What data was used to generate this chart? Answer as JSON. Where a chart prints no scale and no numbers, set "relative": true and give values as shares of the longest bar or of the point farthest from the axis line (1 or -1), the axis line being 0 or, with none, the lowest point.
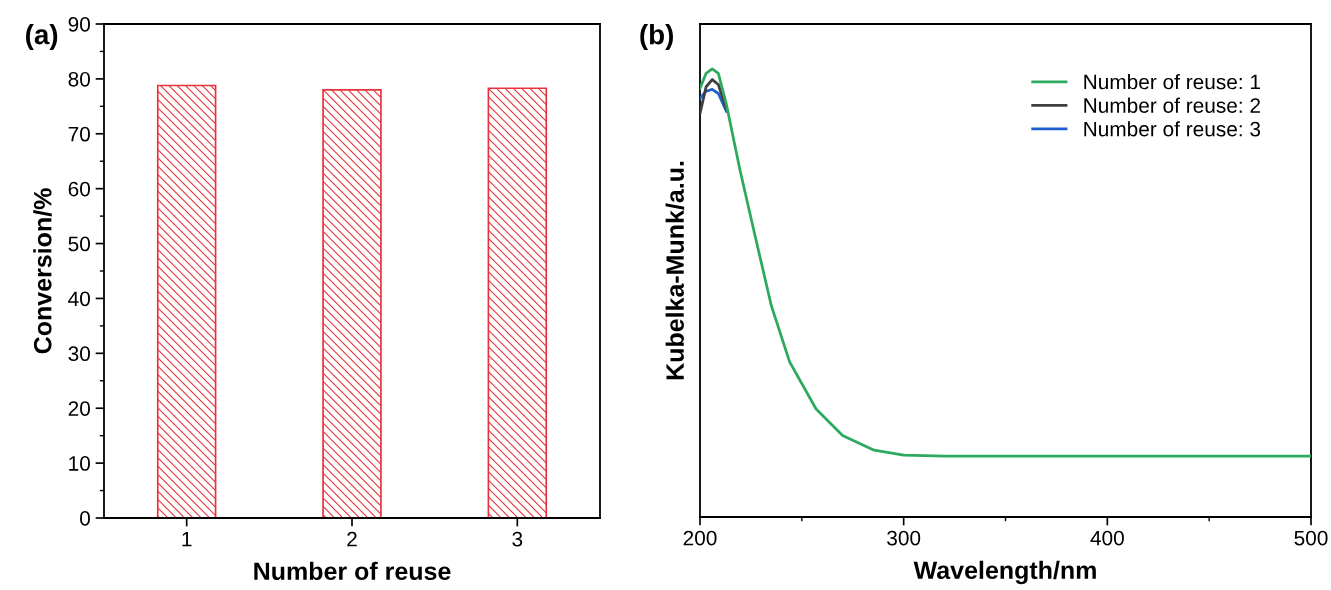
{
  "chart_data": [
    {
      "type": "bar",
      "title": "(a)",
      "xlabel": "Number of reuse",
      "ylabel": "Conversion/%",
      "categories": [
        "1",
        "2",
        "3"
      ],
      "series": [
        {
          "color": "#e8323c",
          "values": [
            78.8,
            78.0,
            78.3
          ]
        }
      ],
      "ylim": [
        0,
        90
      ],
      "yticks": [
        0,
        10,
        20,
        30,
        40,
        50,
        60,
        70,
        80,
        90
      ],
      "grid": false,
      "legend": false
    },
    {
      "type": "line",
      "title": "(b)",
      "xlabel": "Wavelength/nm",
      "ylabel": "Kubelka-Munk/a.u.",
      "relative": true,
      "x": [
        200,
        203,
        206,
        209,
        213,
        219.6,
        227,
        235,
        244,
        257,
        270,
        285.5,
        300,
        320,
        400,
        500
      ],
      "series": [
        {
          "name": "Number of reuse: 1",
          "color": "#2eaa5f",
          "values": [
            0.956,
            0.99,
            1.0,
            0.99,
            0.92,
            0.775,
            0.628,
            0.472,
            0.346,
            0.241,
            0.182,
            0.149,
            0.138,
            0.136,
            0.136,
            0.136
          ]
        },
        {
          "name": "Number of reuse: 2",
          "color": "#404040",
          "values": [
            0.9,
            0.96,
            0.976,
            0.965,
            0.91,
            null,
            null,
            null,
            null,
            null,
            null,
            null,
            null,
            null,
            null,
            null
          ]
        },
        {
          "name": "Number of reuse: 3",
          "color": "#1f5fd0",
          "values": [
            0.934,
            0.95,
            0.954,
            0.945,
            0.905,
            null,
            null,
            null,
            null,
            null,
            null,
            null,
            null,
            null,
            null,
            null
          ]
        }
      ],
      "xlim": [
        200,
        500
      ],
      "xticks": [
        200,
        300,
        400,
        500
      ],
      "grid": false,
      "legend": "top right",
      "marker": "none",
      "line_style": "solid"
    }
  ]
}
